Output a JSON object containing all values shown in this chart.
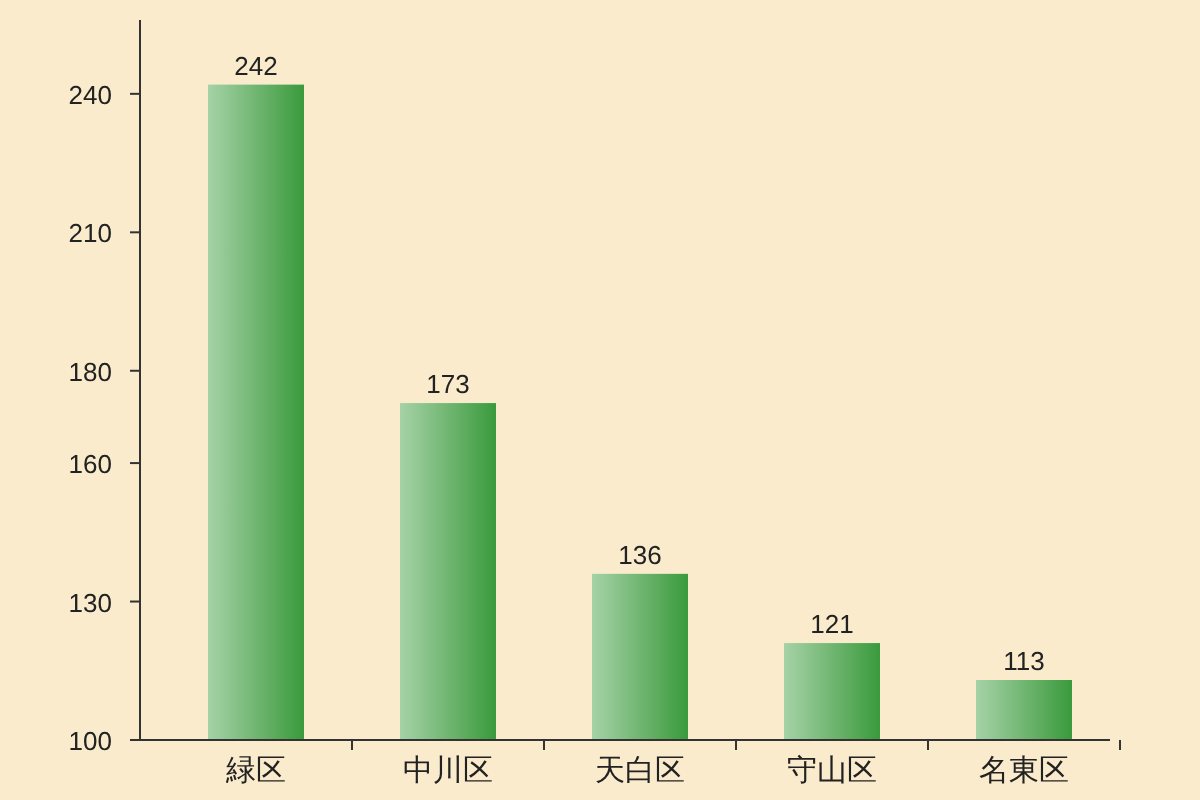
{
  "chart_data": {
    "type": "bar",
    "categories": [
      "緑区",
      "中川区",
      "天白区",
      "守山区",
      "名東区"
    ],
    "values": [
      242,
      173,
      136,
      121,
      113
    ],
    "color": "#3a9a3c",
    "ylim": [
      100,
      256
    ],
    "yticks": [
      100,
      130,
      160,
      180,
      210,
      240
    ],
    "data_labels": true,
    "grid": false
  }
}
